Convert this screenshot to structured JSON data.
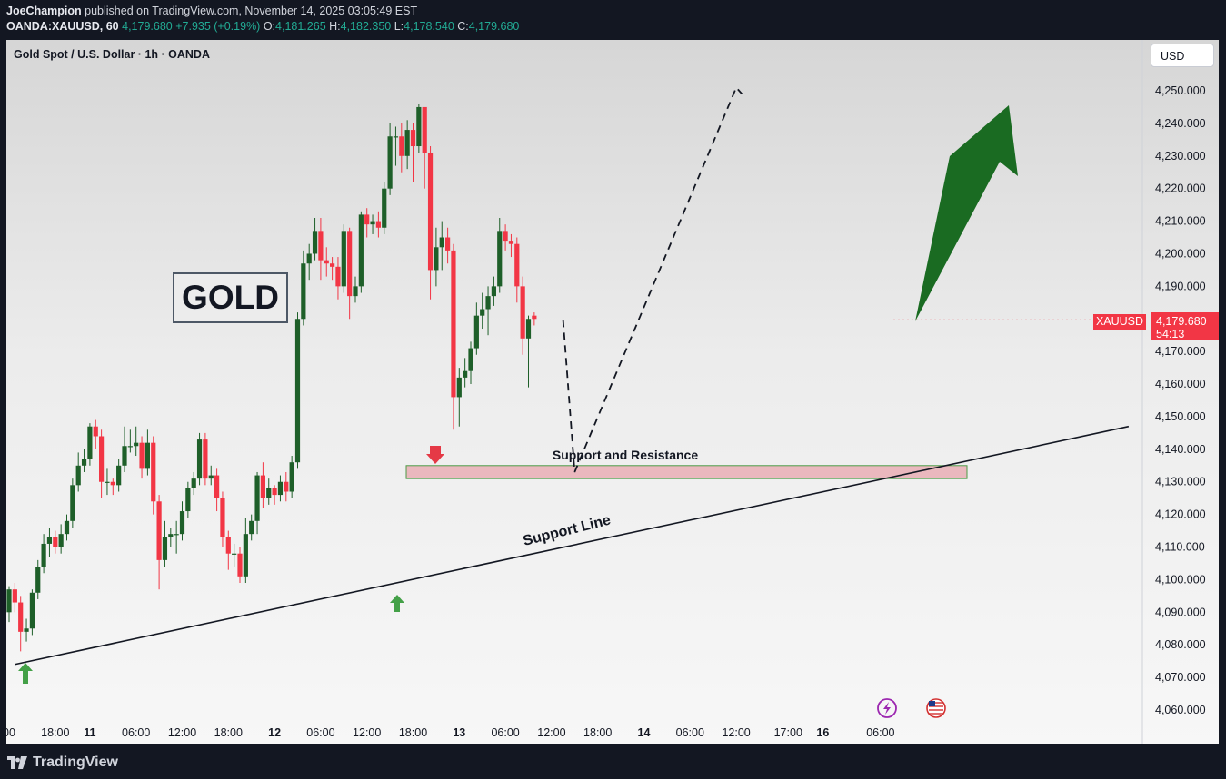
{
  "header": {
    "author": "JoeChampion",
    "published": "published on TradingView.com, November 14, 2025 03:05:49 EST",
    "symbol": "OANDA:XAUUSD, 60",
    "last": "4,179.680",
    "change": "+7.935 (+0.19%)",
    "o_label": "O:",
    "o_value": "4,181.265",
    "h_label": "H:",
    "h_value": "4,182.350",
    "l_label": "L:",
    "l_value": "4,178.540",
    "c_label": "C:",
    "c_value": "4,179.680"
  },
  "chart_title": "Gold Spot / U.S. Dollar · 1h · OANDA",
  "currency": "USD",
  "annotation_gold": "GOLD",
  "price_tag": {
    "symbol": "XAUUSD",
    "price": "4,179.680",
    "countdown": "54:13"
  },
  "footer": {
    "brand": "TradingView"
  },
  "colors": {
    "up": "#1e5f29",
    "down": "#f23645",
    "arrow": "#1a6b22",
    "zone": "#e8a6ad",
    "background": "#131722"
  },
  "chart_data": {
    "type": "candlestick",
    "title": "Gold Spot / U.S. Dollar · 1h · OANDA",
    "xlabel": "",
    "ylabel": "",
    "ylim": [
      4055,
      4260
    ],
    "y_ticks": [
      "4,250.000",
      "4,240.000",
      "4,230.000",
      "4,220.000",
      "4,210.000",
      "4,200.000",
      "4,190.000",
      "4,180.000",
      "4,170.000",
      "4,160.000",
      "4,150.000",
      "4,140.000",
      "4,130.000",
      "4,120.000",
      "4,110.000",
      "4,100.000",
      "4,090.000",
      "4,080.000",
      "4,070.000",
      "4,060.000"
    ],
    "x_ticks": [
      {
        "i": 0,
        "label": "00",
        "bold": false
      },
      {
        "i": 8,
        "label": "18:00",
        "bold": false
      },
      {
        "i": 14,
        "label": "11",
        "bold": true
      },
      {
        "i": 22,
        "label": "06:00",
        "bold": false
      },
      {
        "i": 30,
        "label": "12:00",
        "bold": false
      },
      {
        "i": 38,
        "label": "18:00",
        "bold": false
      },
      {
        "i": 46,
        "label": "12",
        "bold": true
      },
      {
        "i": 54,
        "label": "06:00",
        "bold": false
      },
      {
        "i": 62,
        "label": "12:00",
        "bold": false
      },
      {
        "i": 70,
        "label": "18:00",
        "bold": false
      },
      {
        "i": 78,
        "label": "13",
        "bold": true
      },
      {
        "i": 86,
        "label": "06:00",
        "bold": false
      },
      {
        "i": 94,
        "label": "12:00",
        "bold": false
      },
      {
        "i": 102,
        "label": "18:00",
        "bold": false
      },
      {
        "i": 110,
        "label": "14",
        "bold": true
      },
      {
        "i": 118,
        "label": "06:00",
        "bold": false
      },
      {
        "i": 126,
        "label": "12:00",
        "bold": false
      },
      {
        "i": 135,
        "label": "17:00",
        "bold": false
      },
      {
        "i": 141,
        "label": "16",
        "bold": true
      },
      {
        "i": 151,
        "label": "06:00",
        "bold": false
      }
    ],
    "candles": [
      [
        4090,
        4097,
        4087,
        4098
      ],
      [
        4097,
        4093,
        4090,
        4099
      ],
      [
        4093,
        4084,
        4078,
        4095
      ],
      [
        4084,
        4085,
        4081,
        4088
      ],
      [
        4085,
        4096,
        4083,
        4097
      ],
      [
        4096,
        4104,
        4094,
        4106
      ],
      [
        4104,
        4111,
        4102,
        4114
      ],
      [
        4111,
        4113,
        4107,
        4116
      ],
      [
        4113,
        4110,
        4108,
        4115
      ],
      [
        4110,
        4114,
        4108,
        4117
      ],
      [
        4114,
        4118,
        4112,
        4120
      ],
      [
        4118,
        4129,
        4116,
        4131
      ],
      [
        4129,
        4135,
        4127,
        4139
      ],
      [
        4135,
        4137,
        4133,
        4140
      ],
      [
        4137,
        4147,
        4135,
        4148
      ],
      [
        4147,
        4144,
        4140,
        4149
      ],
      [
        4144,
        4130,
        4125,
        4146
      ],
      [
        4130,
        4130,
        4126,
        4134
      ],
      [
        4130,
        4129,
        4126,
        4131
      ],
      [
        4129,
        4135,
        4127,
        4137
      ],
      [
        4135,
        4141,
        4133,
        4147
      ],
      [
        4141,
        4141,
        4139,
        4146
      ],
      [
        4141,
        4142,
        4138,
        4147
      ],
      [
        4142,
        4134,
        4131,
        4144
      ],
      [
        4134,
        4142,
        4132,
        4146
      ],
      [
        4142,
        4124,
        4120,
        4144
      ],
      [
        4124,
        4106,
        4097,
        4126
      ],
      [
        4106,
        4113,
        4104,
        4118
      ],
      [
        4113,
        4114,
        4110,
        4116
      ],
      [
        4114,
        4114,
        4108,
        4118
      ],
      [
        4114,
        4121,
        4112,
        4124
      ],
      [
        4121,
        4128,
        4119,
        4130
      ],
      [
        4128,
        4131,
        4126,
        4133
      ],
      [
        4131,
        4143,
        4129,
        4145
      ],
      [
        4143,
        4131,
        4129,
        4145
      ],
      [
        4131,
        4132,
        4129,
        4135
      ],
      [
        4132,
        4125,
        4121,
        4134
      ],
      [
        4125,
        4113,
        4110,
        4127
      ],
      [
        4113,
        4108,
        4103,
        4115
      ],
      [
        4108,
        4108,
        4104,
        4111
      ],
      [
        4108,
        4101,
        4099,
        4110
      ],
      [
        4101,
        4114,
        4099,
        4119
      ],
      [
        4114,
        4118,
        4112,
        4120
      ],
      [
        4118,
        4132,
        4114,
        4133
      ],
      [
        4132,
        4125,
        4122,
        4136
      ],
      [
        4125,
        4128,
        4123,
        4131
      ],
      [
        4128,
        4126,
        4123,
        4129
      ],
      [
        4126,
        4130,
        4124,
        4132
      ],
      [
        4130,
        4127,
        4124,
        4133
      ],
      [
        4127,
        4136,
        4125,
        4138
      ],
      [
        4136,
        4180,
        4134,
        4182
      ],
      [
        4180,
        4197,
        4178,
        4201
      ],
      [
        4197,
        4200,
        4192,
        4203
      ],
      [
        4200,
        4207,
        4198,
        4211
      ],
      [
        4207,
        4198,
        4192,
        4211
      ],
      [
        4198,
        4197,
        4193,
        4202
      ],
      [
        4197,
        4196,
        4192,
        4199
      ],
      [
        4196,
        4190,
        4186,
        4199
      ],
      [
        4190,
        4207,
        4188,
        4209
      ],
      [
        4207,
        4187,
        4180,
        4208
      ],
      [
        4187,
        4190,
        4185,
        4193
      ],
      [
        4190,
        4212,
        4188,
        4213
      ],
      [
        4212,
        4209,
        4205,
        4214
      ],
      [
        4209,
        4210,
        4206,
        4212
      ],
      [
        4210,
        4208,
        4205,
        4213
      ],
      [
        4208,
        4220,
        4206,
        4222
      ],
      [
        4220,
        4236,
        4218,
        4240
      ],
      [
        4236,
        4236,
        4227,
        4239
      ],
      [
        4236,
        4230,
        4225,
        4240
      ],
      [
        4230,
        4238,
        4226,
        4241
      ],
      [
        4238,
        4233,
        4222,
        4240
      ],
      [
        4233,
        4245,
        4231,
        4246
      ],
      [
        4245,
        4231,
        4220,
        4244
      ],
      [
        4231,
        4195,
        4186,
        4233
      ],
      [
        4195,
        4202,
        4190,
        4208
      ],
      [
        4202,
        4205,
        4195,
        4210
      ],
      [
        4205,
        4201,
        4197,
        4208
      ],
      [
        4201,
        4156,
        4146,
        4203
      ],
      [
        4156,
        4162,
        4147,
        4165
      ],
      [
        4162,
        4164,
        4159,
        4168
      ],
      [
        4164,
        4171,
        4160,
        4173
      ],
      [
        4171,
        4181,
        4169,
        4185
      ],
      [
        4181,
        4183,
        4177,
        4188
      ],
      [
        4183,
        4187,
        4175,
        4190
      ],
      [
        4187,
        4190,
        4184,
        4193
      ],
      [
        4190,
        4207,
        4188,
        4211
      ],
      [
        4207,
        4204,
        4201,
        4209
      ],
      [
        4204,
        4203,
        4199,
        4206
      ],
      [
        4203,
        4190,
        4185,
        4205
      ],
      [
        4190,
        4174,
        4169,
        4193
      ],
      [
        4174,
        4180,
        4159,
        4181
      ],
      [
        4181,
        4180,
        4178,
        4182
      ]
    ],
    "annotations": {
      "support_resistance_zone": {
        "label": "Support and Resistance",
        "from": 4131,
        "to": 4135
      },
      "support_line": {
        "label": "Support Line",
        "from": [
          1,
          4074
        ],
        "to": [
          194,
          4147
        ]
      },
      "projection_path": [
        [
          4179.68,
          96
        ],
        [
          4133,
          98
        ],
        [
          4251,
          126
        ],
        [
          4249,
          127
        ]
      ]
    }
  }
}
